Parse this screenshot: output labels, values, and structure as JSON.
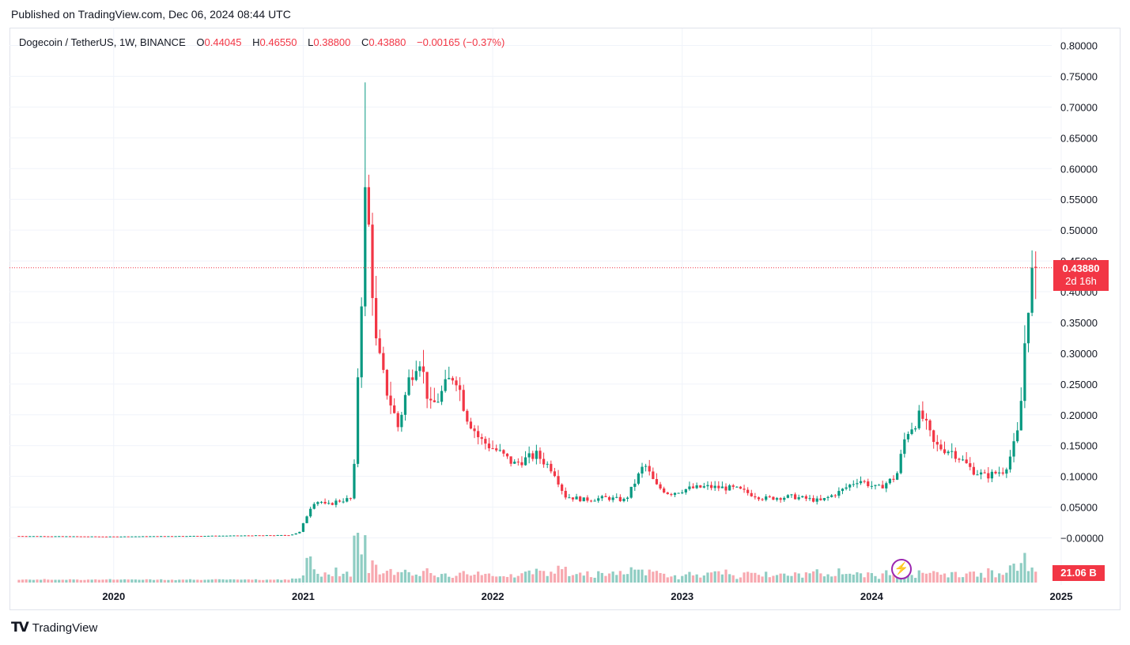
{
  "header": {
    "published": "Published on TradingView.com, Dec 06, 2024 08:44 UTC"
  },
  "legend": {
    "symbol": "Dogecoin / TetherUS, 1W, BINANCE",
    "open_label": "O",
    "open": "0.44045",
    "high_label": "H",
    "high": "0.46550",
    "low_label": "L",
    "low": "0.38800",
    "close_label": "C",
    "close": "0.43880",
    "change": "−0.00165 (−0.37%)"
  },
  "price_badge": {
    "price": "0.43880",
    "countdown": "2d 16h"
  },
  "volume_badge": "21.06 B",
  "brand": {
    "logo": "TV",
    "name": "TradingView"
  },
  "colors": {
    "up": "#089981",
    "down": "#f23645",
    "up_vol": "#8fcdc3",
    "down_vol": "#f7a9b0",
    "grid": "#f0f3fa",
    "last_price_line": "#f23645"
  },
  "chart_data": {
    "type": "candlestick",
    "interval": "1W",
    "y_axis": {
      "ticks": [
        "0.80000",
        "0.75000",
        "0.70000",
        "0.65000",
        "0.60000",
        "0.55000",
        "0.50000",
        "0.45000",
        "0.40000",
        "0.35000",
        "0.30000",
        "0.25000",
        "0.20000",
        "0.15000",
        "0.10000",
        "0.05000",
        "−0.00000"
      ],
      "range": [
        0.0,
        0.8
      ],
      "position": "right"
    },
    "x_axis": {
      "ticks": [
        "2020",
        "2021",
        "2022",
        "2023",
        "2024",
        "2025"
      ],
      "range": [
        2019.45,
        2024.95
      ]
    },
    "last_price": 0.4388,
    "grid": true,
    "anchors": [
      [
        2019.5,
        0.003
      ],
      [
        2020.0,
        0.0022
      ],
      [
        2020.5,
        0.0033
      ],
      [
        2020.95,
        0.0045
      ],
      [
        2021.0,
        0.0095
      ],
      [
        2021.07,
        0.058
      ],
      [
        2021.11,
        0.06
      ],
      [
        2021.14,
        0.052
      ],
      [
        2021.2,
        0.06
      ],
      [
        2021.28,
        0.064
      ],
      [
        2021.29,
        0.123
      ],
      [
        2021.3,
        0.32
      ],
      [
        2021.31,
        0.25
      ],
      [
        2021.33,
        0.42
      ],
      [
        2021.34,
        0.57
      ],
      [
        2021.37,
        0.49
      ],
      [
        2021.4,
        0.32
      ],
      [
        2021.45,
        0.25
      ],
      [
        2021.52,
        0.18
      ],
      [
        2021.58,
        0.26
      ],
      [
        2021.63,
        0.3
      ],
      [
        2021.69,
        0.21
      ],
      [
        2021.74,
        0.23
      ],
      [
        2021.82,
        0.27
      ],
      [
        2021.88,
        0.2
      ],
      [
        2021.95,
        0.16
      ],
      [
        2022.05,
        0.14
      ],
      [
        2022.13,
        0.12
      ],
      [
        2022.25,
        0.135
      ],
      [
        2022.34,
        0.11
      ],
      [
        2022.4,
        0.068
      ],
      [
        2022.5,
        0.062
      ],
      [
        2022.62,
        0.065
      ],
      [
        2022.72,
        0.061
      ],
      [
        2022.82,
        0.12
      ],
      [
        2022.88,
        0.085
      ],
      [
        2022.95,
        0.072
      ],
      [
        2023.05,
        0.08
      ],
      [
        2023.15,
        0.083
      ],
      [
        2023.3,
        0.08
      ],
      [
        2023.45,
        0.064
      ],
      [
        2023.6,
        0.067
      ],
      [
        2023.75,
        0.06
      ],
      [
        2023.85,
        0.075
      ],
      [
        2023.95,
        0.095
      ],
      [
        2024.05,
        0.08
      ],
      [
        2024.15,
        0.1
      ],
      [
        2024.2,
        0.17
      ],
      [
        2024.28,
        0.2
      ],
      [
        2024.35,
        0.15
      ],
      [
        2024.45,
        0.14
      ],
      [
        2024.55,
        0.11
      ],
      [
        2024.62,
        0.1
      ],
      [
        2024.72,
        0.11
      ],
      [
        2024.76,
        0.14
      ],
      [
        2024.8,
        0.18
      ],
      [
        2024.82,
        0.29
      ],
      [
        2024.84,
        0.37
      ],
      [
        2024.86,
        0.42
      ],
      [
        2024.88,
        0.44
      ]
    ]
  }
}
